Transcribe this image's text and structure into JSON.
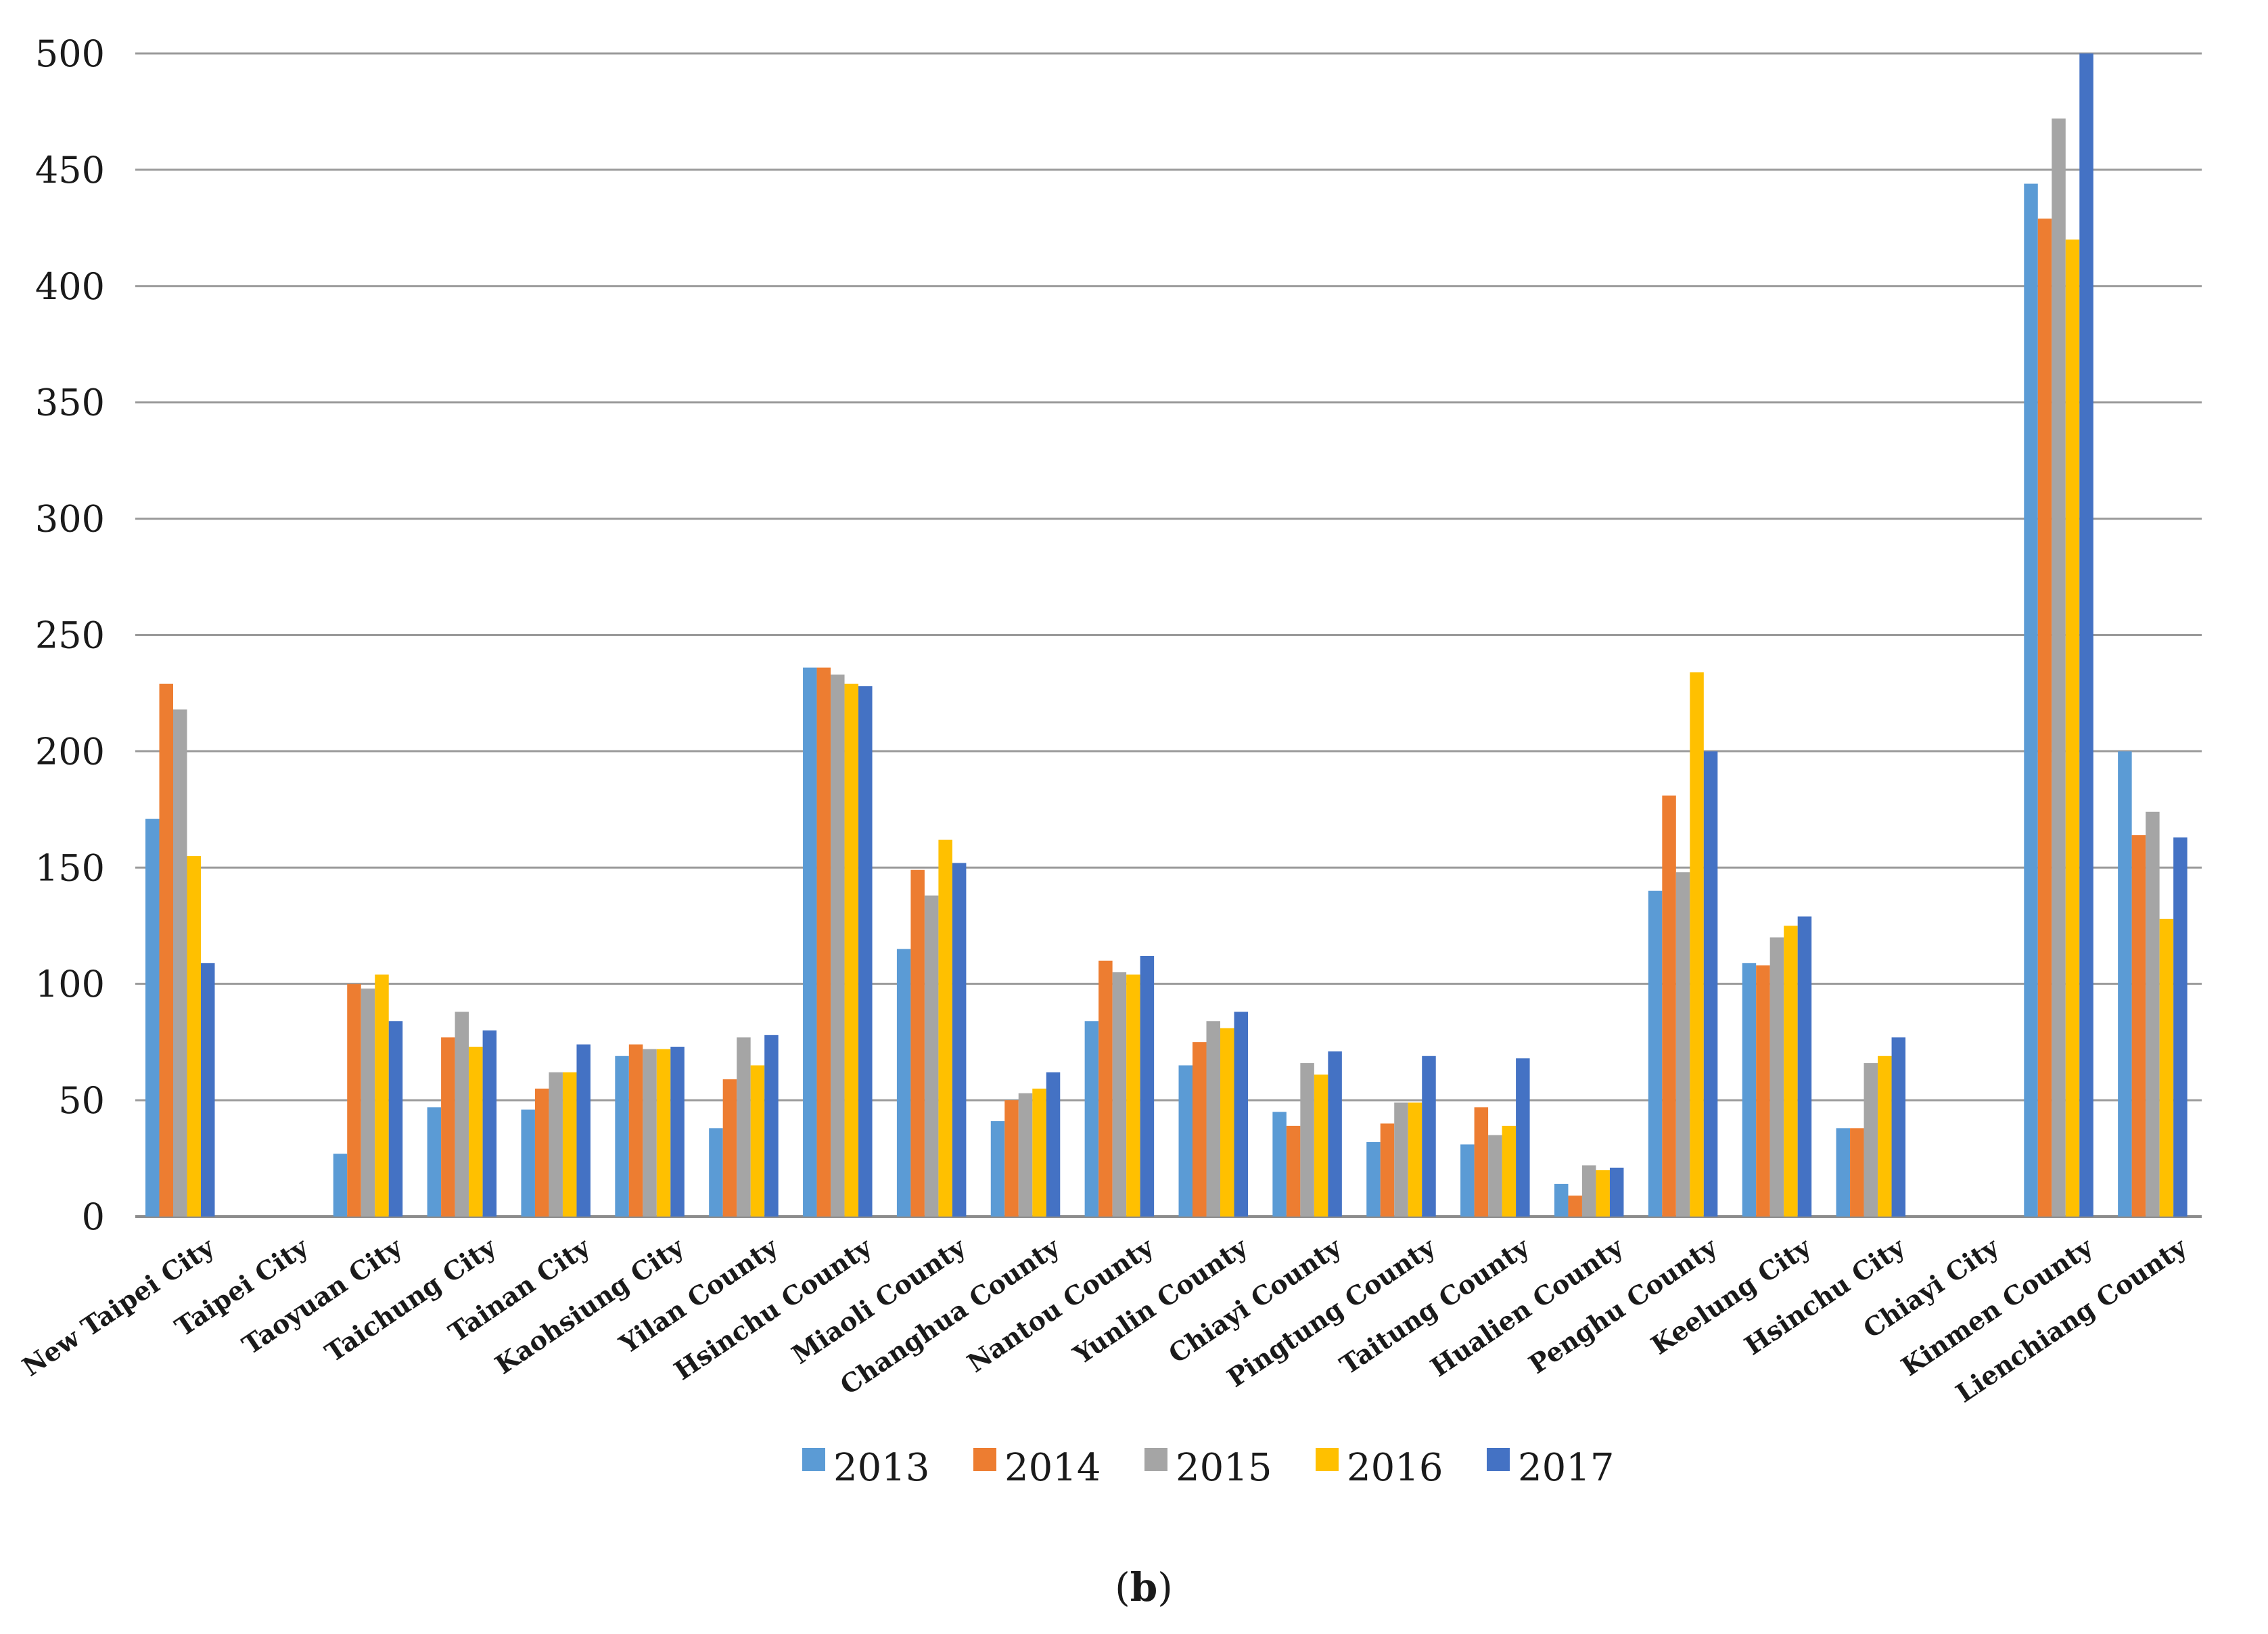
{
  "chart_data": {
    "type": "bar",
    "title": "",
    "xlabel": "",
    "ylabel": "",
    "ylim": [
      0,
      500
    ],
    "yticks": [
      0,
      50,
      100,
      150,
      200,
      250,
      300,
      350,
      400,
      450,
      500
    ],
    "grid": true,
    "legend_position": "bottom",
    "categories": [
      "New Taipei City",
      "Taipei City",
      "Taoyuan City",
      "Taichung City",
      "Tainan City",
      "Kaohsiung City",
      "Yilan County",
      "Hsinchu County",
      "Miaoli County",
      "Changhua County",
      "Nantou County",
      "Yunlin County",
      "Chiayi County",
      "Pingtung County",
      "Taitung County",
      "Hualien County",
      "Penghu County",
      "Keelung City",
      "Hsinchu City",
      "Chiayi City",
      "Kinmen County",
      "Lienchiang County"
    ],
    "series": [
      {
        "name": "2013",
        "color": "#5B9BD5",
        "values": [
          171,
          null,
          27,
          47,
          46,
          69,
          38,
          236,
          115,
          41,
          84,
          65,
          45,
          32,
          31,
          14,
          140,
          109,
          38,
          null,
          444,
          200
        ]
      },
      {
        "name": "2014",
        "color": "#ED7D31",
        "values": [
          229,
          null,
          100,
          77,
          55,
          74,
          59,
          236,
          149,
          50,
          110,
          75,
          39,
          40,
          47,
          9,
          181,
          108,
          38,
          null,
          429,
          164
        ]
      },
      {
        "name": "2015",
        "color": "#A5A5A5",
        "values": [
          218,
          null,
          98,
          88,
          62,
          72,
          77,
          233,
          138,
          53,
          105,
          84,
          66,
          49,
          35,
          22,
          148,
          120,
          66,
          null,
          472,
          174
        ]
      },
      {
        "name": "2016",
        "color": "#FFC000",
        "values": [
          155,
          null,
          104,
          73,
          62,
          72,
          65,
          229,
          162,
          55,
          104,
          81,
          61,
          49,
          39,
          20,
          234,
          125,
          69,
          null,
          420,
          128
        ]
      },
      {
        "name": "2017",
        "color": "#4472C4",
        "values": [
          109,
          null,
          84,
          80,
          74,
          73,
          78,
          228,
          152,
          62,
          112,
          88,
          71,
          69,
          68,
          21,
          200,
          129,
          77,
          null,
          500,
          163
        ]
      }
    ]
  },
  "caption": {
    "open": "(",
    "letter": "b",
    "close": ")"
  }
}
